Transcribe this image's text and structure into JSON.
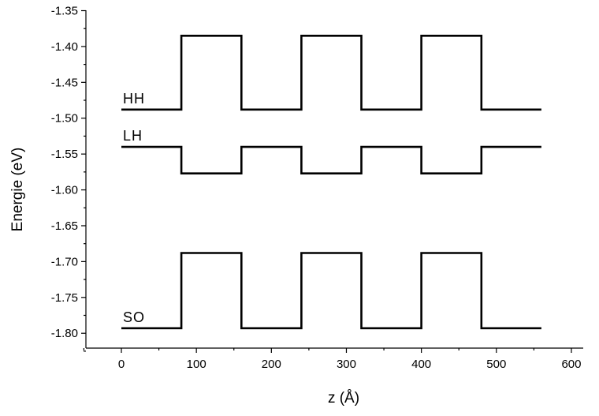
{
  "chart_data": {
    "type": "line",
    "xlabel": "z (Å)",
    "ylabel": "Energie (eV)",
    "xlim": [
      -50,
      650
    ],
    "ylim": [
      -1.82,
      -1.35
    ],
    "xticks": [
      0,
      100,
      200,
      300,
      400,
      500,
      600
    ],
    "xtick_labels": [
      "0",
      "100",
      "200",
      "300",
      "400",
      "500",
      "600"
    ],
    "yticks": [
      -1.35,
      -1.4,
      -1.45,
      -1.5,
      -1.55,
      -1.6,
      -1.65,
      -1.7,
      -1.75,
      -1.8
    ],
    "ytick_labels": [
      "-1.35",
      "-1.40",
      "-1.45",
      "-1.50",
      "-1.55",
      "-1.60",
      "-1.65",
      "-1.70",
      "-1.75",
      "-1.80"
    ],
    "grid": false,
    "legend": "none",
    "series": [
      {
        "name": "HH",
        "x": [
          0,
          80,
          80,
          160,
          160,
          240,
          240,
          320,
          320,
          400,
          400,
          480,
          480,
          560
        ],
        "y": [
          -1.488,
          -1.488,
          -1.385,
          -1.385,
          -1.488,
          -1.488,
          -1.385,
          -1.385,
          -1.488,
          -1.488,
          -1.385,
          -1.385,
          -1.488,
          -1.488
        ]
      },
      {
        "name": "LH",
        "x": [
          0,
          80,
          80,
          160,
          160,
          240,
          240,
          320,
          320,
          400,
          400,
          480,
          480,
          560
        ],
        "y": [
          -1.54,
          -1.54,
          -1.577,
          -1.577,
          -1.54,
          -1.54,
          -1.577,
          -1.577,
          -1.54,
          -1.54,
          -1.577,
          -1.577,
          -1.54,
          -1.54
        ]
      },
      {
        "name": "SO",
        "x": [
          0,
          80,
          80,
          160,
          160,
          240,
          240,
          320,
          320,
          400,
          400,
          480,
          480,
          560
        ],
        "y": [
          -1.793,
          -1.793,
          -1.688,
          -1.688,
          -1.793,
          -1.793,
          -1.688,
          -1.688,
          -1.793,
          -1.793,
          -1.688,
          -1.688,
          -1.793,
          -1.793
        ]
      }
    ],
    "annotations": [
      {
        "text": "HH",
        "series": "HH"
      },
      {
        "text": "LH",
        "series": "LH"
      },
      {
        "text": "SO",
        "series": "SO"
      }
    ]
  }
}
